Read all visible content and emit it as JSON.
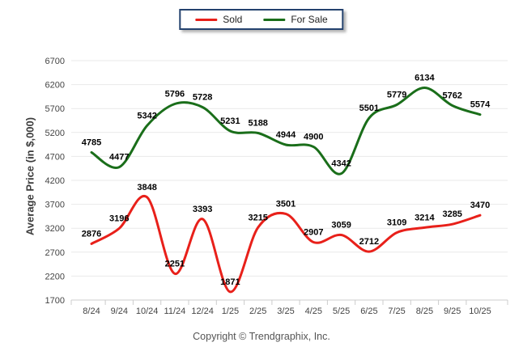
{
  "chart_data": {
    "type": "line",
    "smooth": true,
    "point_labels": true,
    "grid": "horizontal",
    "legend_position": "top-center",
    "categories": [
      "8/24",
      "9/24",
      "10/24",
      "11/24",
      "12/24",
      "1/25",
      "2/25",
      "3/25",
      "4/25",
      "5/25",
      "6/25",
      "7/25",
      "8/25",
      "9/25",
      "10/25"
    ],
    "series": [
      {
        "name": "Sold",
        "color": "#e8201a",
        "values": [
          2876,
          3196,
          3848,
          2251,
          3393,
          1871,
          3215,
          3501,
          2907,
          3059,
          2712,
          3109,
          3214,
          3285,
          3470
        ]
      },
      {
        "name": "For Sale",
        "color": "#1a6e1a",
        "values": [
          4785,
          4477,
          5342,
          5796,
          5728,
          5231,
          5188,
          4944,
          4900,
          4342,
          5501,
          5779,
          6134,
          5762,
          5574
        ]
      }
    ],
    "ylabel": "Average Price (in $,000)",
    "xlabel": "",
    "title": "",
    "ylim": [
      1700,
      6700
    ],
    "ytick_step": 500,
    "yticks": [
      1700,
      2200,
      2700,
      3200,
      3700,
      4200,
      4700,
      5200,
      5700,
      6200,
      6700
    ],
    "grid_color": "#e9e9e9",
    "axis_color": "#cccccc",
    "tick_label_color": "#444444",
    "point_label_color": "#000000"
  },
  "legend_border_color": "#24426e",
  "footer": {
    "copyright": "Copyright © Trendgraphix, Inc."
  }
}
